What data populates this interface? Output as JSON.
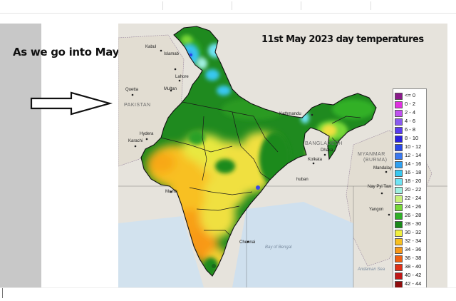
{
  "slide": {
    "caption": "As we go into May..",
    "arrow_icon": "right-arrow-icon"
  },
  "map": {
    "title": "11st May 2023 day temperatures",
    "country_labels": {
      "pakistan": "PAKISTAN",
      "bangladesh": "BANGLADESH",
      "myanmar": "MYANMAR",
      "burma": "(BURMA)"
    },
    "sea_labels": {
      "bay_of_bengal": "Bay of Bengal",
      "andaman_sea": "Andaman Sea"
    },
    "city_labels": {
      "kabul": "Kabul",
      "islamabad": "Islamab",
      "lahore": "Lahore",
      "quetta": "Quetta",
      "multan": "Multan",
      "hyderabad": "Hydera",
      "karachi": "Karachi",
      "kathmandu": "Kathmandu",
      "dhaka": "Dhaka",
      "kolkata": "Kolkata",
      "mumbai": "Mumb",
      "chennai": "Chennai",
      "naypyitaw": "Nay Pyi Taw",
      "yangon": "Yangon",
      "mandalay": "Mandalay",
      "bhuban": "huban"
    }
  },
  "legend": {
    "items": [
      {
        "label": "<= 0",
        "color": "#8b1a8b"
      },
      {
        "label": "0 - 2",
        "color": "#e030e0"
      },
      {
        "label": "2 - 4",
        "color": "#c050f0"
      },
      {
        "label": "4 - 6",
        "color": "#8a5af0"
      },
      {
        "label": "6 - 8",
        "color": "#5a3cf0"
      },
      {
        "label": "8 - 10",
        "color": "#2a20e0"
      },
      {
        "label": "10 - 12",
        "color": "#2a48e8"
      },
      {
        "label": "12 - 14",
        "color": "#3a78f0"
      },
      {
        "label": "14 - 16",
        "color": "#30a0f0"
      },
      {
        "label": "16 - 18",
        "color": "#38c8f0"
      },
      {
        "label": "18 - 20",
        "color": "#70e4f4"
      },
      {
        "label": "20 - 22",
        "color": "#a0f0e0"
      },
      {
        "label": "22 - 24",
        "color": "#c8f078"
      },
      {
        "label": "24 - 26",
        "color": "#78d838"
      },
      {
        "label": "26 - 28",
        "color": "#30b028"
      },
      {
        "label": "28 - 30",
        "color": "#1a8a1a"
      },
      {
        "label": "30 - 32",
        "color": "#f0f040"
      },
      {
        "label": "32 - 34",
        "color": "#f8c020"
      },
      {
        "label": "34 - 36",
        "color": "#f89818"
      },
      {
        "label": "36 - 38",
        "color": "#f06010"
      },
      {
        "label": "38 - 40",
        "color": "#e03018"
      },
      {
        "label": "40 - 42",
        "color": "#c01818"
      },
      {
        "label": "42 - 44",
        "color": "#900c0c"
      }
    ]
  }
}
